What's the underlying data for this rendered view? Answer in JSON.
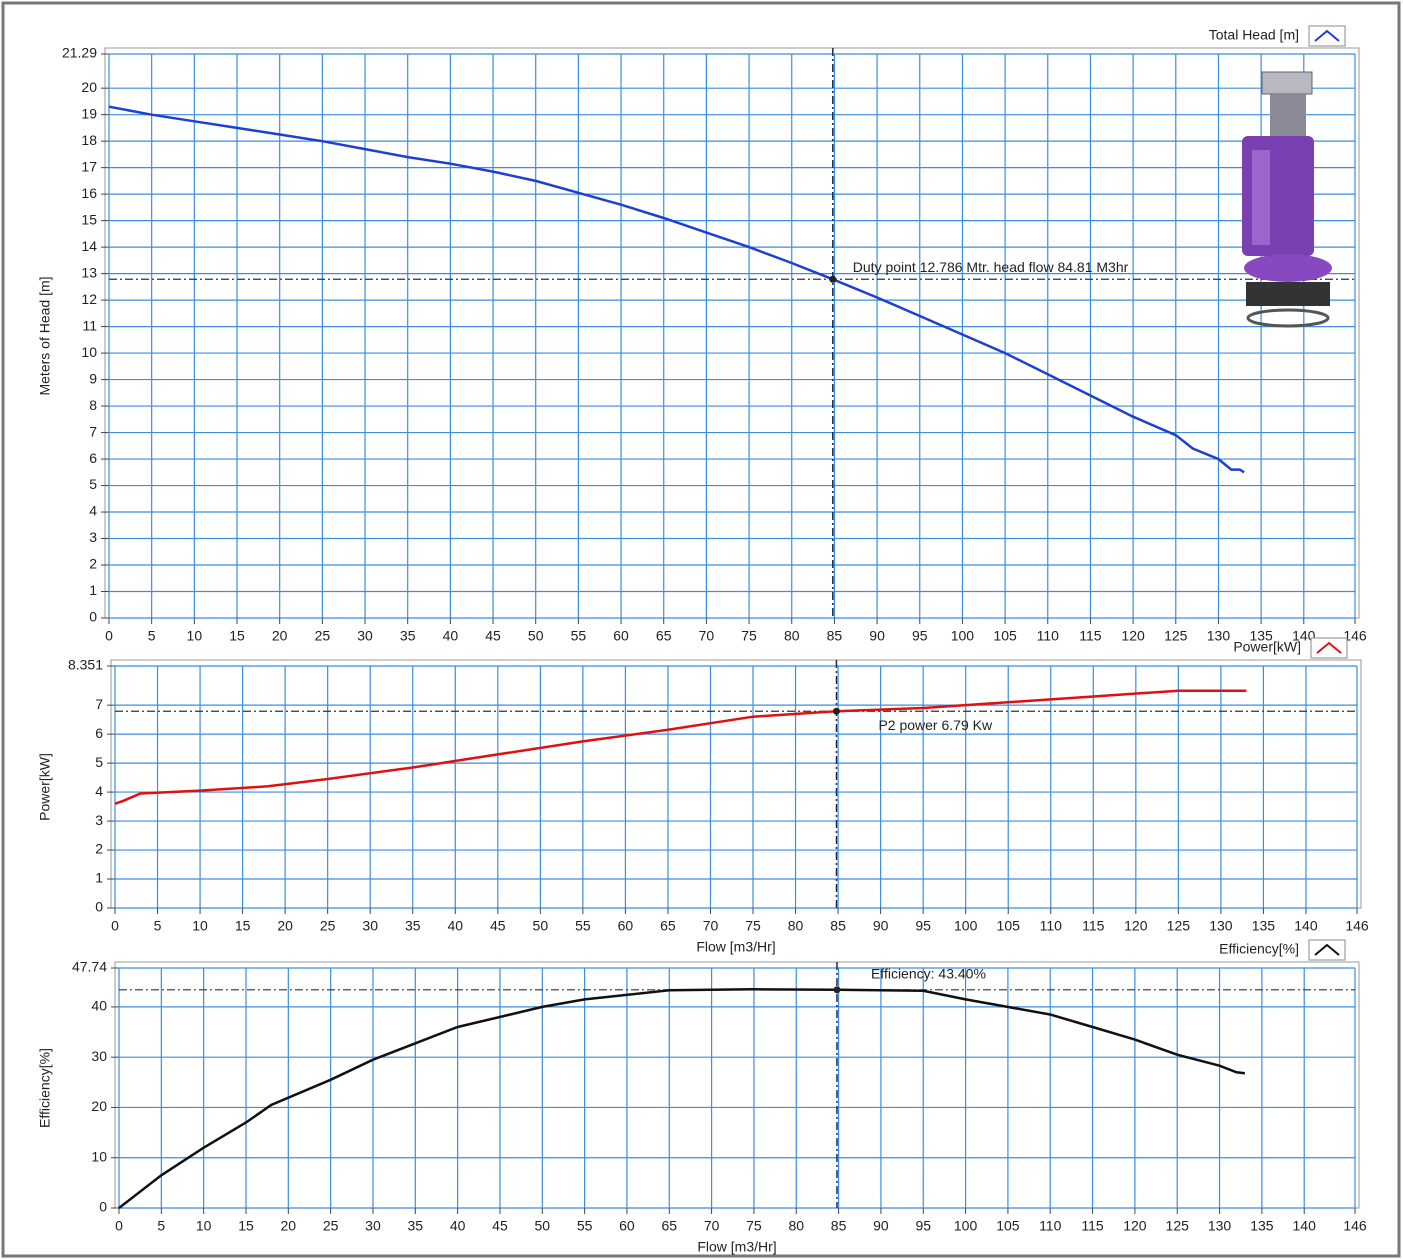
{
  "chart_data": [
    {
      "type": "line",
      "y_label": "Meters of Head [m]",
      "x": [
        0,
        5,
        10,
        15,
        20,
        25,
        30,
        35,
        40,
        45,
        50,
        55,
        60,
        65,
        70,
        75,
        80,
        84.81,
        90,
        95,
        100,
        105,
        110,
        115,
        120,
        125,
        127,
        130,
        131.5,
        132.5,
        133
      ],
      "series": [
        {
          "name": "Total Head [m]",
          "color": "#1f3fd0",
          "values": [
            19.3,
            19.0,
            18.75,
            18.5,
            18.25,
            18.0,
            17.7,
            17.4,
            17.15,
            16.85,
            16.5,
            16.05,
            15.6,
            15.1,
            14.55,
            14.0,
            13.4,
            12.786,
            12.1,
            11.4,
            10.7,
            10.0,
            9.2,
            8.4,
            7.6,
            6.9,
            6.4,
            6.0,
            5.6,
            5.6,
            5.5
          ]
        }
      ],
      "xlim": [
        0,
        146
      ],
      "ylim": [
        0,
        21.29
      ],
      "xticks": [
        0,
        5,
        10,
        15,
        20,
        25,
        30,
        35,
        40,
        45,
        50,
        55,
        60,
        65,
        70,
        75,
        80,
        85,
        90,
        95,
        100,
        105,
        110,
        115,
        120,
        125,
        130,
        135,
        140,
        146
      ],
      "yticks": [
        0,
        1,
        2,
        3,
        4,
        5,
        6,
        7,
        8,
        9,
        10,
        11,
        12,
        13,
        14,
        15,
        16,
        17,
        18,
        19,
        20,
        21.29
      ],
      "grid": true,
      "legend": "upper right",
      "duty_point": {
        "x": 84.81,
        "y": 12.786
      },
      "annotation": "Duty point 12.786 Mtr. head flow 84.81 M3hr"
    },
    {
      "type": "line",
      "y_label": "Power[kW]",
      "x_label": "Flow [m3/Hr]",
      "x": [
        0,
        1,
        3,
        10,
        18,
        25,
        35,
        45,
        55,
        65,
        75,
        84.81,
        95,
        110,
        115,
        125,
        130,
        133
      ],
      "series": [
        {
          "name": "Power[kW]",
          "color": "#e01010",
          "values": [
            3.6,
            3.7,
            3.95,
            4.05,
            4.2,
            4.45,
            4.85,
            5.3,
            5.75,
            6.15,
            6.6,
            6.79,
            6.9,
            7.2,
            7.3,
            7.5,
            7.5,
            7.5
          ]
        }
      ],
      "xlim": [
        0,
        146
      ],
      "ylim": [
        0,
        8.351
      ],
      "xticks": [
        0,
        5,
        10,
        15,
        20,
        25,
        30,
        35,
        40,
        45,
        50,
        55,
        60,
        65,
        70,
        75,
        80,
        85,
        90,
        95,
        100,
        105,
        110,
        115,
        120,
        125,
        130,
        135,
        140,
        146
      ],
      "yticks": [
        0,
        1,
        2,
        3,
        4,
        5,
        6,
        7,
        8.351
      ],
      "grid": true,
      "legend": "upper right",
      "duty_point": {
        "x": 84.81,
        "y": 6.79
      },
      "annotation": "P2 power 6.79 Kw"
    },
    {
      "type": "line",
      "y_label": "Efficiency[%]",
      "x_label": "Flow [m3/Hr]",
      "x": [
        0,
        5,
        10,
        15,
        18,
        25,
        30,
        40,
        50,
        55,
        65,
        75,
        84.81,
        95,
        100,
        110,
        115,
        120,
        125,
        130,
        132,
        133
      ],
      "series": [
        {
          "name": "Efficiency[%]",
          "color": "#111111",
          "values": [
            0,
            6.5,
            12,
            17,
            20.5,
            25.5,
            29.5,
            36,
            40,
            41.5,
            43.3,
            43.5,
            43.4,
            43.2,
            41.5,
            38.5,
            36,
            33.5,
            30.5,
            28.3,
            27,
            26.8
          ]
        }
      ],
      "xlim": [
        0,
        146
      ],
      "ylim": [
        0,
        47.74
      ],
      "xticks": [
        0,
        5,
        10,
        15,
        20,
        25,
        30,
        35,
        40,
        45,
        50,
        55,
        60,
        65,
        70,
        75,
        80,
        85,
        90,
        95,
        100,
        105,
        110,
        115,
        120,
        125,
        130,
        135,
        140,
        146
      ],
      "yticks": [
        0,
        10,
        20,
        30,
        40,
        47.74
      ],
      "grid": true,
      "legend": "upper right",
      "duty_point": {
        "x": 84.81,
        "y": 43.4
      },
      "annotation": "Efficiency: 43.40%"
    }
  ]
}
